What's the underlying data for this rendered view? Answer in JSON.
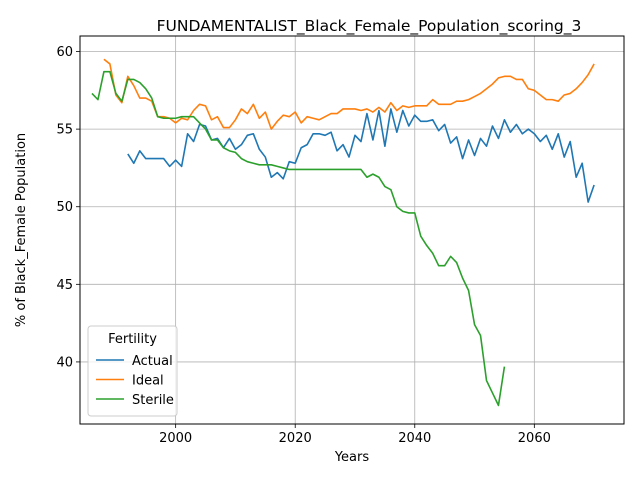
{
  "chart_data": {
    "type": "line",
    "title": "FUNDAMENTALIST_Black_Female_Population_scoring_3",
    "xlabel": "Years",
    "ylabel": "% of Black_Female Population",
    "xlim": [
      1984,
      2075
    ],
    "ylim": [
      36,
      61
    ],
    "xticks": [
      2000,
      2020,
      2040,
      2060
    ],
    "yticks": [
      40,
      45,
      50,
      55,
      60
    ],
    "grid": true,
    "legend": {
      "title": "Fertility",
      "position": "lower-left"
    },
    "series": [
      {
        "name": "Actual",
        "color": "#1f77b4",
        "x": [
          1992,
          1993,
          1994,
          1995,
          1996,
          1997,
          1998,
          1999,
          2000,
          2001,
          2002,
          2003,
          2004,
          2005,
          2006,
          2007,
          2008,
          2009,
          2010,
          2011,
          2012,
          2013,
          2014,
          2015,
          2016,
          2017,
          2018,
          2019,
          2020,
          2021,
          2022,
          2023,
          2024,
          2025,
          2026,
          2027,
          2028,
          2029,
          2030,
          2031,
          2032,
          2033,
          2034,
          2035,
          2036,
          2037,
          2038,
          2039,
          2040,
          2041,
          2042,
          2043,
          2044,
          2045,
          2046,
          2047,
          2048,
          2049,
          2050,
          2051,
          2052,
          2053,
          2054,
          2055,
          2056,
          2057,
          2058,
          2059,
          2060,
          2061,
          2062,
          2063,
          2064,
          2065,
          2066,
          2067,
          2068,
          2069,
          2070
        ],
        "y": [
          53.4,
          52.8,
          53.6,
          53.1,
          53.1,
          53.1,
          53.1,
          52.6,
          53.0,
          52.6,
          54.7,
          54.2,
          55.3,
          55.2,
          54.3,
          54.4,
          53.8,
          54.4,
          53.7,
          54.0,
          54.6,
          54.7,
          53.7,
          53.2,
          51.9,
          52.2,
          51.8,
          52.9,
          52.8,
          53.8,
          54.0,
          54.7,
          54.7,
          54.6,
          54.8,
          53.6,
          54.0,
          53.2,
          54.6,
          54.2,
          56.0,
          54.3,
          56.2,
          53.9,
          56.3,
          54.8,
          56.2,
          55.2,
          55.9,
          55.5,
          55.5,
          55.6,
          54.9,
          55.3,
          54.1,
          54.5,
          53.1,
          54.3,
          53.3,
          54.4,
          53.9,
          55.2,
          54.4,
          55.6,
          54.8,
          55.3,
          54.7,
          55.0,
          54.7,
          54.2,
          54.6,
          53.7,
          54.7,
          53.2,
          54.2,
          51.9,
          52.8,
          50.3,
          51.4
        ]
      },
      {
        "name": "Ideal",
        "color": "#ff7f0e",
        "x": [
          1988,
          1989,
          1990,
          1991,
          1992,
          1993,
          1994,
          1995,
          1996,
          1997,
          1998,
          1999,
          2000,
          2001,
          2002,
          2003,
          2004,
          2005,
          2006,
          2007,
          2008,
          2009,
          2010,
          2011,
          2012,
          2013,
          2014,
          2015,
          2016,
          2017,
          2018,
          2019,
          2020,
          2021,
          2022,
          2023,
          2024,
          2025,
          2026,
          2027,
          2028,
          2029,
          2030,
          2031,
          2032,
          2033,
          2034,
          2035,
          2036,
          2037,
          2038,
          2039,
          2040,
          2041,
          2042,
          2043,
          2044,
          2045,
          2046,
          2047,
          2048,
          2049,
          2050,
          2051,
          2052,
          2053,
          2054,
          2055,
          2056,
          2057,
          2058,
          2059,
          2060,
          2061,
          2062,
          2063,
          2064,
          2065,
          2066,
          2067,
          2068,
          2069,
          2070
        ],
        "y": [
          59.5,
          59.2,
          57.2,
          56.7,
          58.4,
          57.8,
          57.0,
          57.0,
          56.8,
          55.8,
          55.8,
          55.7,
          55.4,
          55.7,
          55.6,
          56.2,
          56.6,
          56.5,
          55.6,
          55.8,
          55.1,
          55.1,
          55.6,
          56.3,
          56.0,
          56.6,
          55.7,
          56.1,
          55.0,
          55.5,
          55.9,
          55.8,
          56.1,
          55.4,
          55.8,
          55.7,
          55.6,
          55.8,
          56.0,
          56.0,
          56.3,
          56.3,
          56.3,
          56.2,
          56.3,
          56.1,
          56.4,
          56.1,
          56.7,
          56.2,
          56.5,
          56.4,
          56.5,
          56.5,
          56.5,
          56.9,
          56.6,
          56.6,
          56.6,
          56.8,
          56.8,
          56.9,
          57.1,
          57.3,
          57.6,
          57.9,
          58.3,
          58.4,
          58.4,
          58.2,
          58.2,
          57.6,
          57.5,
          57.2,
          56.9,
          56.9,
          56.8,
          57.2,
          57.3,
          57.6,
          58.0,
          58.5,
          59.2
        ]
      },
      {
        "name": "Sterile",
        "color": "#2ca02c",
        "x": [
          1986,
          1987,
          1988,
          1989,
          1990,
          1991,
          1992,
          1993,
          1994,
          1995,
          1996,
          1997,
          1998,
          1999,
          2000,
          2001,
          2002,
          2003,
          2004,
          2005,
          2006,
          2007,
          2008,
          2009,
          2010,
          2011,
          2012,
          2013,
          2014,
          2015,
          2016,
          2017,
          2018,
          2019,
          2020,
          2021,
          2022,
          2023,
          2024,
          2025,
          2026,
          2027,
          2028,
          2029,
          2030,
          2031,
          2032,
          2033,
          2034,
          2035,
          2036,
          2037,
          2038,
          2039,
          2040,
          2041,
          2042,
          2043,
          2044,
          2045,
          2046,
          2047,
          2048,
          2049,
          2050,
          2051,
          2052,
          2053,
          2054,
          2055
        ],
        "y": [
          57.3,
          56.9,
          58.7,
          58.7,
          57.3,
          56.8,
          58.2,
          58.2,
          58.0,
          57.6,
          57.0,
          55.8,
          55.7,
          55.7,
          55.7,
          55.8,
          55.8,
          55.8,
          55.4,
          55.0,
          54.3,
          54.3,
          53.8,
          53.6,
          53.5,
          53.1,
          52.9,
          52.8,
          52.7,
          52.7,
          52.7,
          52.6,
          52.5,
          52.4,
          52.4,
          52.4,
          52.4,
          52.4,
          52.4,
          52.4,
          52.4,
          52.4,
          52.4,
          52.4,
          52.4,
          52.4,
          51.9,
          52.1,
          51.9,
          51.3,
          51.1,
          50.0,
          49.7,
          49.6,
          49.6,
          48.1,
          47.5,
          47.0,
          46.2,
          46.2,
          46.8,
          46.4,
          45.4,
          44.6,
          42.4,
          41.7,
          38.8,
          38.0,
          37.2,
          39.7
        ]
      }
    ]
  }
}
